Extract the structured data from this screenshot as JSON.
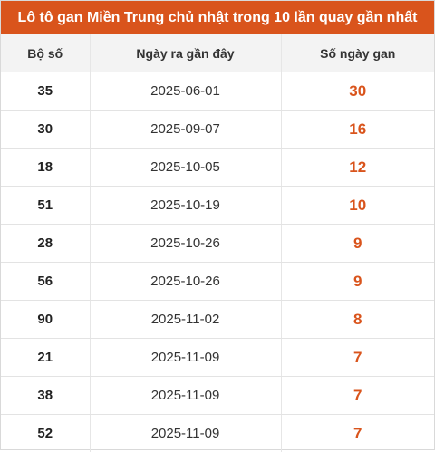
{
  "title": "Lô tô gan Miền Trung chủ nhật trong 10 lần quay gần nhất",
  "colors": {
    "accent": "#d9541c",
    "header_bg": "#f3f3f3"
  },
  "columns": [
    "Bộ số",
    "Ngày ra gần đây",
    "Số ngày gan"
  ],
  "rows": [
    {
      "number": "35",
      "date": "2025-06-01",
      "days": "30"
    },
    {
      "number": "30",
      "date": "2025-09-07",
      "days": "16"
    },
    {
      "number": "18",
      "date": "2025-10-05",
      "days": "12"
    },
    {
      "number": "51",
      "date": "2025-10-19",
      "days": "10"
    },
    {
      "number": "28",
      "date": "2025-10-26",
      "days": "9"
    },
    {
      "number": "56",
      "date": "2025-10-26",
      "days": "9"
    },
    {
      "number": "90",
      "date": "2025-11-02",
      "days": "8"
    },
    {
      "number": "21",
      "date": "2025-11-09",
      "days": "7"
    },
    {
      "number": "38",
      "date": "2025-11-09",
      "days": "7"
    },
    {
      "number": "52",
      "date": "2025-11-09",
      "days": "7"
    }
  ]
}
